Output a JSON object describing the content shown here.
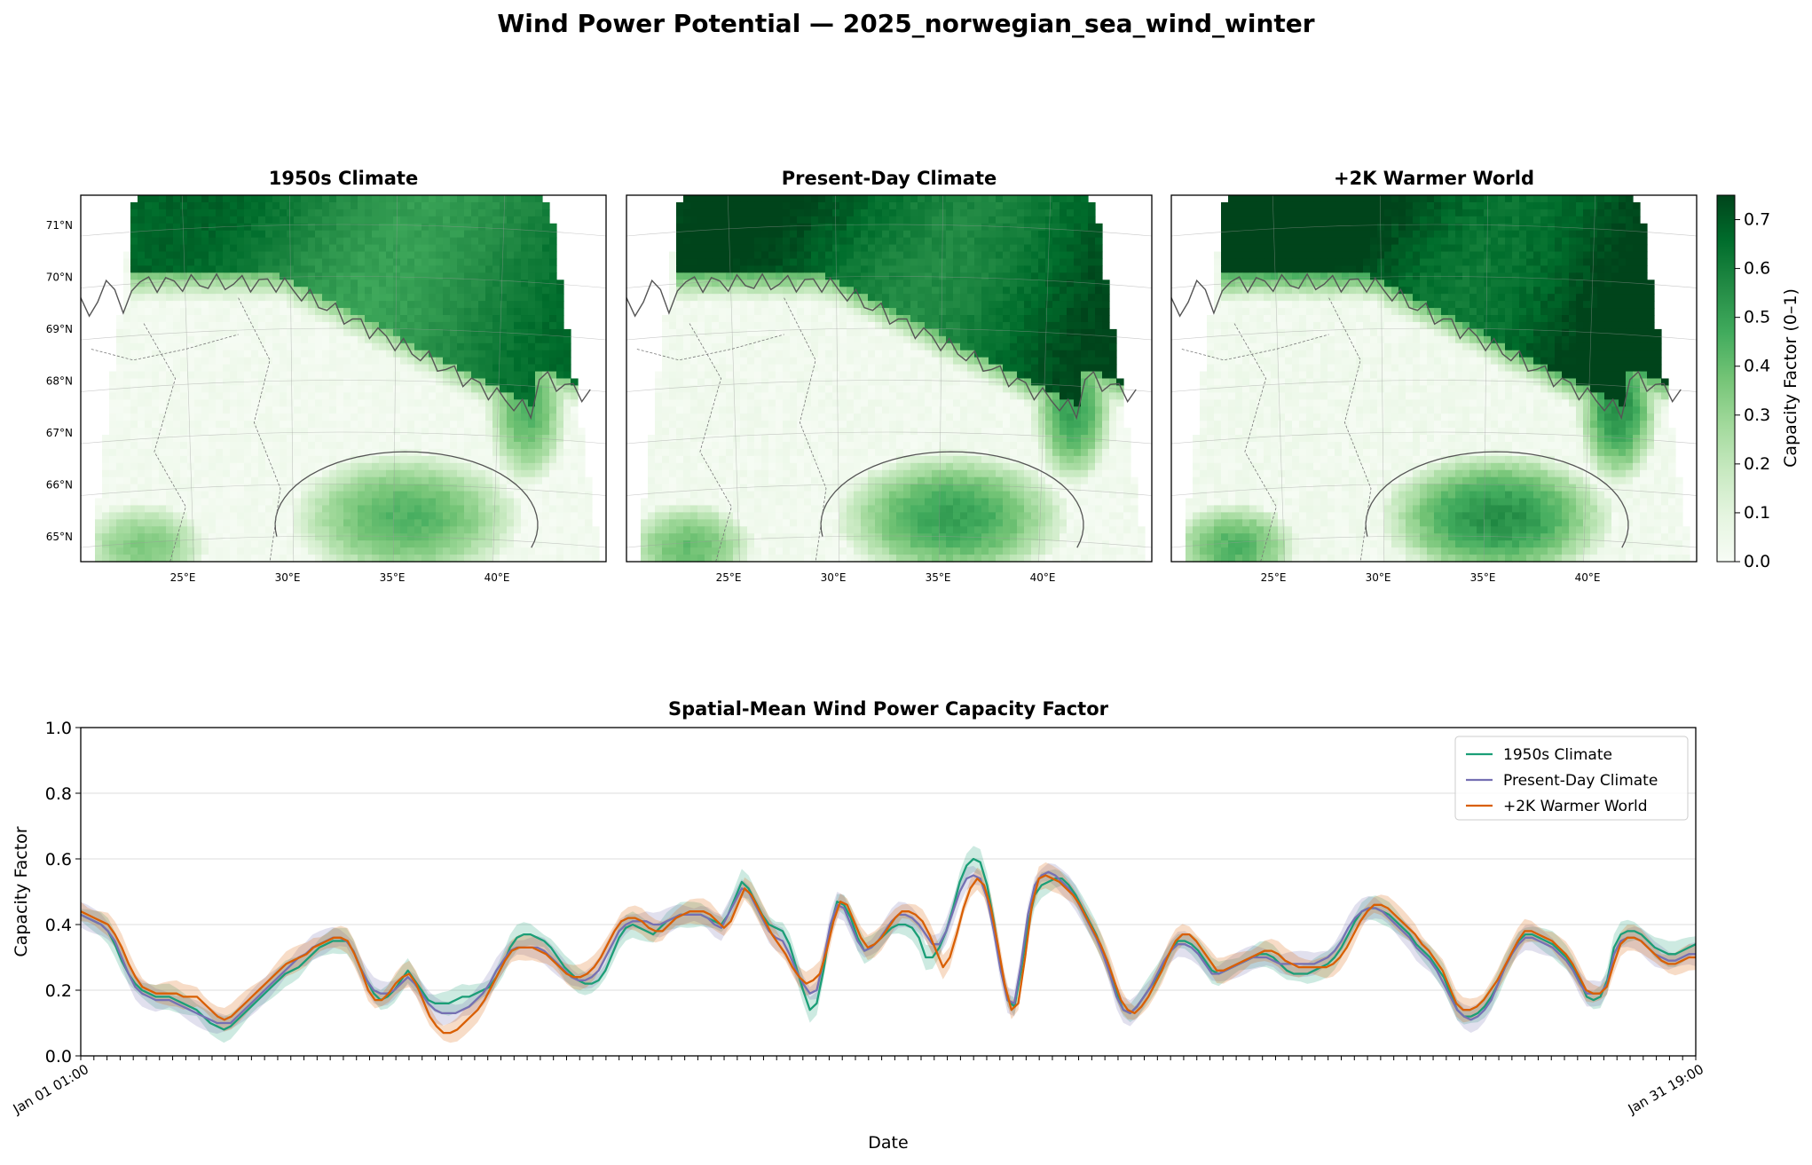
{
  "figure": {
    "suptitle": "Wind Power Potential — 2025_norwegian_sea_wind_winter"
  },
  "maps": {
    "panels": [
      {
        "title": "1950s Climate",
        "intensity": 0.88
      },
      {
        "title": "Present-Day Climate",
        "intensity": 1.0
      },
      {
        "title": "+2K Warmer World",
        "intensity": 1.1
      }
    ],
    "lat_ticks": [
      "65°N",
      "66°N",
      "67°N",
      "68°N",
      "69°N",
      "70°N",
      "71°N"
    ],
    "lon_ticks": [
      "25°E",
      "30°E",
      "35°E",
      "40°E"
    ],
    "colorbar": {
      "label": "Capacity Factor (0–1)",
      "ticks": [
        "0.0",
        "0.1",
        "0.2",
        "0.3",
        "0.4",
        "0.5",
        "0.6",
        "0.7"
      ],
      "range": [
        0.0,
        0.75
      ],
      "cmap": "Greens",
      "colors": [
        "#f7fcf5",
        "#e5f5e0",
        "#c7e9c0",
        "#a1d99b",
        "#74c476",
        "#41ab5d",
        "#238b45",
        "#006d2c",
        "#00441b"
      ]
    }
  },
  "chart_data": {
    "type": "line",
    "title": "Spatial-Mean Wind Power Capacity Factor",
    "xlabel": "Date",
    "ylabel": "Capacity Factor",
    "ylim": [
      0.0,
      1.0
    ],
    "yticks": [
      "0.0",
      "0.2",
      "0.4",
      "0.6",
      "0.8",
      "1.0"
    ],
    "grid": "y",
    "legend_position": "top-right",
    "x_tick_labels": {
      "first": "Jan 01 01:00",
      "last": "Jan 31 19:00"
    },
    "x_tick_count": 124,
    "series": [
      {
        "name": "1950s Climate",
        "color": "#1b9e77",
        "values": [
          0.43,
          0.42,
          0.41,
          0.4,
          0.38,
          0.34,
          0.29,
          0.25,
          0.22,
          0.2,
          0.19,
          0.18,
          0.18,
          0.18,
          0.17,
          0.16,
          0.15,
          0.14,
          0.12,
          0.1,
          0.09,
          0.08,
          0.09,
          0.11,
          0.13,
          0.15,
          0.17,
          0.19,
          0.21,
          0.23,
          0.25,
          0.26,
          0.27,
          0.29,
          0.31,
          0.33,
          0.34,
          0.35,
          0.35,
          0.35,
          0.32,
          0.27,
          0.23,
          0.19,
          0.17,
          0.18,
          0.2,
          0.23,
          0.26,
          0.23,
          0.2,
          0.17,
          0.16,
          0.16,
          0.16,
          0.17,
          0.18,
          0.18,
          0.19,
          0.2,
          0.21,
          0.24,
          0.28,
          0.33,
          0.36,
          0.37,
          0.37,
          0.36,
          0.35,
          0.33,
          0.3,
          0.27,
          0.25,
          0.23,
          0.22,
          0.22,
          0.23,
          0.26,
          0.31,
          0.36,
          0.39,
          0.4,
          0.39,
          0.38,
          0.37,
          0.39,
          0.41,
          0.42,
          0.43,
          0.43,
          0.43,
          0.43,
          0.42,
          0.41,
          0.4,
          0.43,
          0.48,
          0.53,
          0.51,
          0.47,
          0.43,
          0.4,
          0.39,
          0.38,
          0.34,
          0.27,
          0.2,
          0.14,
          0.16,
          0.26,
          0.39,
          0.47,
          0.46,
          0.42,
          0.36,
          0.32,
          0.33,
          0.35,
          0.37,
          0.39,
          0.4,
          0.4,
          0.39,
          0.36,
          0.3,
          0.3,
          0.33,
          0.38,
          0.45,
          0.53,
          0.58,
          0.6,
          0.59,
          0.52,
          0.41,
          0.28,
          0.17,
          0.15,
          0.26,
          0.4,
          0.49,
          0.52,
          0.53,
          0.54,
          0.54,
          0.52,
          0.49,
          0.45,
          0.41,
          0.37,
          0.32,
          0.26,
          0.19,
          0.14,
          0.13,
          0.15,
          0.18,
          0.21,
          0.24,
          0.28,
          0.32,
          0.35,
          0.35,
          0.34,
          0.32,
          0.29,
          0.26,
          0.25,
          0.26,
          0.27,
          0.28,
          0.29,
          0.3,
          0.31,
          0.31,
          0.3,
          0.28,
          0.26,
          0.25,
          0.25,
          0.25,
          0.26,
          0.27,
          0.28,
          0.3,
          0.33,
          0.37,
          0.41,
          0.44,
          0.45,
          0.45,
          0.44,
          0.43,
          0.41,
          0.39,
          0.37,
          0.34,
          0.32,
          0.3,
          0.27,
          0.24,
          0.19,
          0.14,
          0.12,
          0.12,
          0.13,
          0.15,
          0.18,
          0.22,
          0.27,
          0.31,
          0.35,
          0.37,
          0.37,
          0.36,
          0.35,
          0.34,
          0.32,
          0.3,
          0.27,
          0.23,
          0.18,
          0.17,
          0.18,
          0.23,
          0.33,
          0.37,
          0.38,
          0.38,
          0.37,
          0.35,
          0.33,
          0.32,
          0.31,
          0.31,
          0.32,
          0.33,
          0.34
        ]
      },
      {
        "name": "Present-Day Climate",
        "color": "#7570b3",
        "values": [
          0.43,
          0.42,
          0.41,
          0.4,
          0.38,
          0.35,
          0.3,
          0.25,
          0.21,
          0.19,
          0.18,
          0.17,
          0.17,
          0.17,
          0.16,
          0.15,
          0.14,
          0.13,
          0.12,
          0.11,
          0.1,
          0.1,
          0.1,
          0.12,
          0.14,
          0.16,
          0.18,
          0.2,
          0.22,
          0.24,
          0.26,
          0.28,
          0.3,
          0.31,
          0.33,
          0.34,
          0.35,
          0.36,
          0.36,
          0.35,
          0.32,
          0.27,
          0.23,
          0.2,
          0.19,
          0.19,
          0.2,
          0.22,
          0.24,
          0.22,
          0.19,
          0.16,
          0.14,
          0.13,
          0.13,
          0.13,
          0.14,
          0.15,
          0.17,
          0.19,
          0.22,
          0.26,
          0.29,
          0.32,
          0.33,
          0.33,
          0.33,
          0.33,
          0.32,
          0.3,
          0.28,
          0.26,
          0.24,
          0.23,
          0.23,
          0.24,
          0.26,
          0.3,
          0.34,
          0.38,
          0.4,
          0.41,
          0.41,
          0.41,
          0.4,
          0.4,
          0.41,
          0.42,
          0.43,
          0.43,
          0.43,
          0.43,
          0.42,
          0.4,
          0.39,
          0.43,
          0.47,
          0.51,
          0.5,
          0.46,
          0.42,
          0.38,
          0.36,
          0.35,
          0.31,
          0.26,
          0.22,
          0.19,
          0.2,
          0.29,
          0.4,
          0.46,
          0.45,
          0.4,
          0.35,
          0.32,
          0.33,
          0.35,
          0.38,
          0.41,
          0.43,
          0.43,
          0.42,
          0.4,
          0.37,
          0.34,
          0.34,
          0.38,
          0.44,
          0.5,
          0.54,
          0.55,
          0.54,
          0.48,
          0.38,
          0.26,
          0.17,
          0.16,
          0.28,
          0.43,
          0.52,
          0.55,
          0.56,
          0.55,
          0.53,
          0.51,
          0.48,
          0.44,
          0.4,
          0.36,
          0.31,
          0.25,
          0.18,
          0.14,
          0.13,
          0.15,
          0.18,
          0.21,
          0.25,
          0.29,
          0.32,
          0.34,
          0.34,
          0.33,
          0.31,
          0.28,
          0.25,
          0.25,
          0.26,
          0.27,
          0.28,
          0.29,
          0.3,
          0.3,
          0.3,
          0.29,
          0.28,
          0.28,
          0.28,
          0.28,
          0.28,
          0.28,
          0.29,
          0.3,
          0.32,
          0.35,
          0.39,
          0.42,
          0.44,
          0.45,
          0.45,
          0.44,
          0.42,
          0.4,
          0.38,
          0.36,
          0.33,
          0.31,
          0.29,
          0.26,
          0.22,
          0.18,
          0.14,
          0.12,
          0.11,
          0.12,
          0.14,
          0.17,
          0.22,
          0.27,
          0.31,
          0.34,
          0.36,
          0.36,
          0.35,
          0.34,
          0.33,
          0.31,
          0.29,
          0.26,
          0.22,
          0.19,
          0.19,
          0.19,
          0.22,
          0.31,
          0.35,
          0.36,
          0.36,
          0.35,
          0.33,
          0.31,
          0.3,
          0.29,
          0.29,
          0.3,
          0.31,
          0.31
        ]
      },
      {
        "name": "+2K Warmer World",
        "color": "#d95f02",
        "values": [
          0.44,
          0.43,
          0.42,
          0.41,
          0.4,
          0.37,
          0.33,
          0.28,
          0.24,
          0.21,
          0.2,
          0.19,
          0.19,
          0.19,
          0.19,
          0.18,
          0.18,
          0.18,
          0.16,
          0.14,
          0.12,
          0.11,
          0.12,
          0.14,
          0.16,
          0.18,
          0.2,
          0.22,
          0.24,
          0.26,
          0.28,
          0.29,
          0.3,
          0.31,
          0.33,
          0.34,
          0.35,
          0.36,
          0.36,
          0.35,
          0.31,
          0.26,
          0.2,
          0.17,
          0.17,
          0.19,
          0.22,
          0.24,
          0.25,
          0.22,
          0.17,
          0.12,
          0.09,
          0.07,
          0.07,
          0.08,
          0.1,
          0.12,
          0.14,
          0.17,
          0.21,
          0.25,
          0.29,
          0.32,
          0.33,
          0.33,
          0.33,
          0.32,
          0.31,
          0.29,
          0.27,
          0.25,
          0.24,
          0.24,
          0.25,
          0.27,
          0.3,
          0.34,
          0.38,
          0.41,
          0.42,
          0.42,
          0.41,
          0.39,
          0.38,
          0.38,
          0.4,
          0.42,
          0.43,
          0.44,
          0.44,
          0.44,
          0.43,
          0.41,
          0.39,
          0.41,
          0.46,
          0.51,
          0.49,
          0.45,
          0.41,
          0.37,
          0.34,
          0.31,
          0.27,
          0.24,
          0.22,
          0.23,
          0.25,
          0.32,
          0.41,
          0.47,
          0.46,
          0.41,
          0.36,
          0.33,
          0.34,
          0.36,
          0.39,
          0.42,
          0.44,
          0.44,
          0.43,
          0.41,
          0.37,
          0.32,
          0.27,
          0.3,
          0.37,
          0.45,
          0.51,
          0.54,
          0.52,
          0.45,
          0.34,
          0.22,
          0.14,
          0.16,
          0.3,
          0.46,
          0.54,
          0.55,
          0.54,
          0.53,
          0.51,
          0.49,
          0.46,
          0.42,
          0.38,
          0.34,
          0.29,
          0.23,
          0.17,
          0.14,
          0.13,
          0.15,
          0.18,
          0.22,
          0.26,
          0.31,
          0.35,
          0.37,
          0.37,
          0.35,
          0.32,
          0.29,
          0.26,
          0.26,
          0.27,
          0.28,
          0.29,
          0.3,
          0.31,
          0.32,
          0.32,
          0.31,
          0.29,
          0.28,
          0.27,
          0.27,
          0.27,
          0.27,
          0.27,
          0.28,
          0.3,
          0.33,
          0.37,
          0.41,
          0.44,
          0.46,
          0.46,
          0.45,
          0.43,
          0.41,
          0.39,
          0.37,
          0.34,
          0.32,
          0.29,
          0.26,
          0.21,
          0.16,
          0.14,
          0.14,
          0.15,
          0.17,
          0.2,
          0.23,
          0.27,
          0.31,
          0.35,
          0.38,
          0.38,
          0.37,
          0.36,
          0.35,
          0.33,
          0.31,
          0.28,
          0.24,
          0.2,
          0.19,
          0.19,
          0.21,
          0.28,
          0.34,
          0.36,
          0.36,
          0.35,
          0.33,
          0.31,
          0.29,
          0.28,
          0.28,
          0.29,
          0.3,
          0.3
        ]
      }
    ]
  }
}
